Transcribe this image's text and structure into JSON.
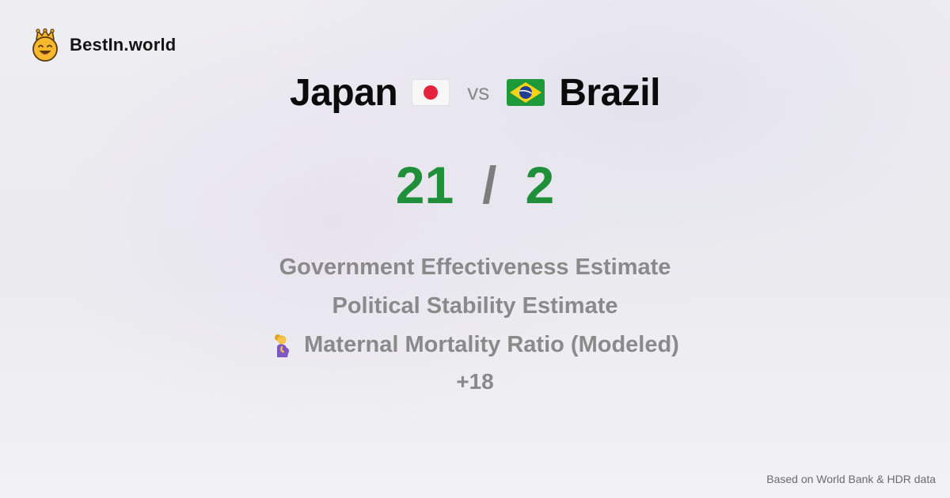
{
  "brand": {
    "name": "BestIn.world",
    "icon": "crown-smiley-icon",
    "color": "#f5b82e"
  },
  "comparison": {
    "left_country": "Japan",
    "left_flag": "japan-flag-icon",
    "vs_text": "vs",
    "right_country": "Brazil",
    "right_flag": "brazil-flag-icon"
  },
  "score": {
    "left": "21",
    "separator": "/",
    "right": "2",
    "accent_color": "#1f8f3a"
  },
  "metrics": [
    {
      "label": "Government Effectiveness Estimate"
    },
    {
      "label": "Political Stability Estimate"
    },
    {
      "label": "Maternal Mortality Ratio (Modeled)",
      "icon": "pregnant-woman-icon"
    }
  ],
  "more_count": "+18",
  "footer": {
    "source_note": "Based on World Bank & HDR data"
  }
}
